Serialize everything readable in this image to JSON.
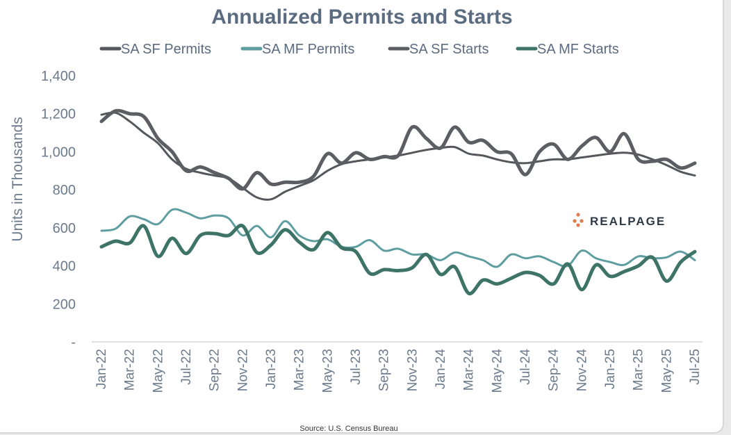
{
  "chart_data": {
    "type": "line",
    "title": "Annualized Permits and Starts",
    "ylabel": "Units in Thousands",
    "xlabel": "",
    "ylim": [
      0,
      1400
    ],
    "yticks": [
      {
        "value": 0,
        "label": "-"
      },
      {
        "value": 200,
        "label": "200"
      },
      {
        "value": 400,
        "label": "400"
      },
      {
        "value": 600,
        "label": "600"
      },
      {
        "value": 800,
        "label": "800"
      },
      {
        "value": 1000,
        "label": "1,000"
      },
      {
        "value": 1200,
        "label": "1,200"
      },
      {
        "value": 1400,
        "label": "1,400"
      }
    ],
    "x": [
      "Jan-22",
      "Feb-22",
      "Mar-22",
      "Apr-22",
      "May-22",
      "Jun-22",
      "Jul-22",
      "Aug-22",
      "Sep-22",
      "Oct-22",
      "Nov-22",
      "Dec-22",
      "Jan-23",
      "Feb-23",
      "Mar-23",
      "Apr-23",
      "May-23",
      "Jun-23",
      "Jul-23",
      "Aug-23",
      "Sep-23",
      "Oct-23",
      "Nov-23",
      "Dec-23",
      "Jan-24",
      "Feb-24",
      "Mar-24",
      "Apr-24",
      "May-24",
      "Jun-24",
      "Jul-24",
      "Aug-24",
      "Sep-24",
      "Oct-24",
      "Nov-24",
      "Dec-24",
      "Jan-25",
      "Feb-25",
      "Mar-25",
      "Apr-25",
      "May-25",
      "Jun-25",
      "Jul-25"
    ],
    "xtick_labels": [
      "Jan-22",
      "Mar-22",
      "May-22",
      "Jul-22",
      "Sep-22",
      "Nov-22",
      "Jan-23",
      "Mar-23",
      "May-23",
      "Jul-23",
      "Sep-23",
      "Nov-23",
      "Jan-24",
      "Mar-24",
      "May-24",
      "Jul-24",
      "Sep-24",
      "Nov-24",
      "Jan-25",
      "Mar-25",
      "May-25",
      "Jul-25"
    ],
    "series": [
      {
        "name": "SA SF Permits",
        "color": "#54575c",
        "width": 3,
        "values": [
          1195,
          1205,
          1160,
          1100,
          1045,
          960,
          910,
          890,
          875,
          860,
          810,
          760,
          750,
          790,
          820,
          850,
          900,
          935,
          950,
          960,
          970,
          980,
          995,
          1010,
          1020,
          1025,
          990,
          980,
          960,
          945,
          940,
          950,
          960,
          960,
          970,
          980,
          990,
          995,
          985,
          960,
          930,
          895,
          875
        ]
      },
      {
        "name": "SA MF Permits",
        "color": "#5f9ea0",
        "width": 3,
        "values": [
          585,
          595,
          660,
          645,
          620,
          695,
          680,
          650,
          665,
          650,
          560,
          610,
          550,
          635,
          560,
          530,
          540,
          500,
          500,
          535,
          480,
          490,
          460,
          460,
          430,
          470,
          450,
          430,
          395,
          460,
          440,
          450,
          420,
          400,
          480,
          440,
          420,
          405,
          450,
          440,
          445,
          475,
          430
        ]
      },
      {
        "name": "SA SF Starts",
        "color": "#5c5e63",
        "width": 5,
        "values": [
          1160,
          1215,
          1200,
          1185,
          1070,
          1000,
          900,
          920,
          890,
          860,
          805,
          890,
          830,
          840,
          840,
          870,
          990,
          940,
          995,
          960,
          975,
          980,
          1130,
          1070,
          1020,
          1130,
          1050,
          1060,
          1000,
          990,
          880,
          1000,
          1040,
          960,
          1030,
          1075,
          1000,
          1095,
          960,
          950,
          960,
          915,
          940
        ]
      },
      {
        "name": "SA MF Starts",
        "color": "#3d7467",
        "width": 5,
        "values": [
          500,
          530,
          520,
          610,
          450,
          545,
          465,
          560,
          570,
          560,
          610,
          470,
          510,
          590,
          525,
          485,
          575,
          495,
          475,
          360,
          380,
          375,
          390,
          460,
          355,
          395,
          255,
          325,
          305,
          335,
          365,
          350,
          305,
          410,
          275,
          405,
          345,
          370,
          400,
          445,
          320,
          420,
          475
        ]
      }
    ],
    "legend_position": "top",
    "annotations": {
      "source": "Source: U.S. Census Bureau",
      "logo_text": "REALPAGE"
    }
  }
}
